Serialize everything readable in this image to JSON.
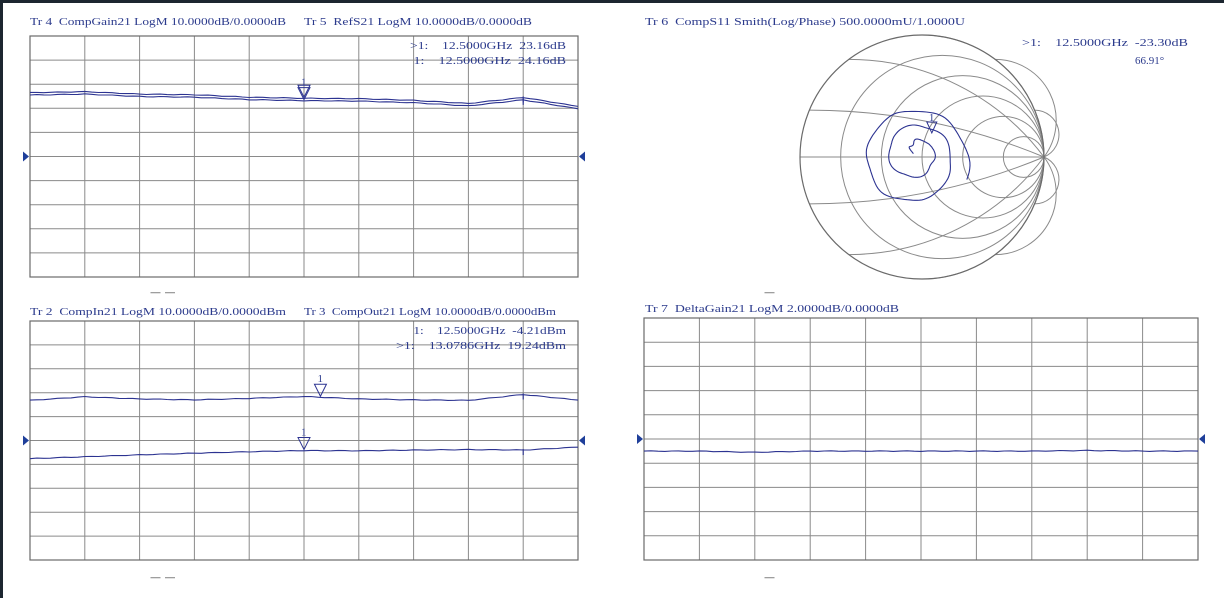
{
  "panels": [
    {
      "id": "top-left",
      "headers": [
        "Tr 4  CompGain21 LogM 10.0000dB/0.0000dB",
        "Tr 5  RefS21 LogM 10.0000dB/0.0000dB"
      ],
      "marker_readouts": [
        ">1:    12.5000GHz  23.16dB",
        " 1:    12.5000GHz  24.16dB"
      ],
      "footer": "— —"
    },
    {
      "id": "top-right",
      "headers": [
        "Tr 6  CompS11 Smith(Log/Phase) 500.0000mU/1.0000U"
      ],
      "marker_readouts": [
        ">1:    12.5000GHz  -23.30dB",
        "66.91°"
      ],
      "footer": "—"
    },
    {
      "id": "bottom-left",
      "headers": [
        "Tr 2  CompIn21 LogM 10.0000dB/0.0000dBm",
        "Tr 3  CompOut21 LogM 10.0000dB/0.0000dBm"
      ],
      "marker_readouts": [
        " 1:    12.5000GHz  -4.21dBm",
        ">1:    13.0786GHz  19.24dBm"
      ],
      "footer": "— —"
    },
    {
      "id": "bottom-right",
      "headers": [
        "Tr 7  DeltaGain21 LogM 2.0000dB/0.0000dB"
      ],
      "marker_readouts": [],
      "footer": "—"
    }
  ],
  "chart_data": [
    {
      "type": "line",
      "title": "Tr 4 / Tr 5",
      "scale_db_per_div": 10,
      "reference_db": 0,
      "divisions": 10,
      "x": [
        0,
        1,
        2,
        3,
        4,
        5,
        6,
        7,
        8,
        9,
        10
      ],
      "series": [
        {
          "name": "Tr 4 CompGain21",
          "values": [
            25.5,
            25.9,
            24.9,
            24.6,
            23.6,
            23.16,
            23.0,
            22.3,
            21.0,
            23.5,
            19.8
          ]
        },
        {
          "name": "Tr 5 RefS21",
          "values": [
            26.5,
            26.9,
            25.9,
            25.6,
            24.6,
            24.16,
            24.0,
            23.3,
            22.0,
            24.5,
            20.8
          ]
        }
      ],
      "trace_color": "#2c3391"
    },
    {
      "type": "smith",
      "title": "Tr 6 CompS11",
      "marker": {
        "label": "1",
        "magnitude_db": -23.3,
        "phase_deg": 66.91
      }
    },
    {
      "type": "line",
      "title": "Tr 2 / Tr 3",
      "scale_db_per_div": 10,
      "reference_db": 0,
      "divisions": 10,
      "x": [
        0,
        1,
        2,
        3,
        4,
        5,
        6,
        7,
        8,
        9,
        10
      ],
      "series": [
        {
          "name": "Tr 2 CompIn21",
          "values": [
            -7.6,
            -6.8,
            -6.0,
            -5.3,
            -4.7,
            -4.21,
            -4.3,
            -4.0,
            -3.8,
            -4.0,
            -2.8
          ]
        },
        {
          "name": "Tr 3 CompOut21",
          "values": [
            16.8,
            18.3,
            17.4,
            17.0,
            17.6,
            18.4,
            17.4,
            17.0,
            16.8,
            19.24,
            16.9
          ]
        }
      ],
      "trace_color": "#2c3391"
    },
    {
      "type": "line",
      "title": "Tr 7 DeltaGain21",
      "scale_db_per_div": 2,
      "reference_db": 0,
      "divisions": 10,
      "x": [
        0,
        1,
        2,
        3,
        4,
        5,
        6,
        7,
        8,
        9,
        10
      ],
      "series": [
        {
          "name": "Tr 7 DeltaGain21",
          "values": [
            -1.0,
            -1.0,
            -1.1,
            -1.0,
            -1.0,
            -1.0,
            -1.0,
            -1.0,
            -0.95,
            -1.0,
            -1.0
          ]
        }
      ],
      "trace_color": "#2c3391"
    }
  ]
}
